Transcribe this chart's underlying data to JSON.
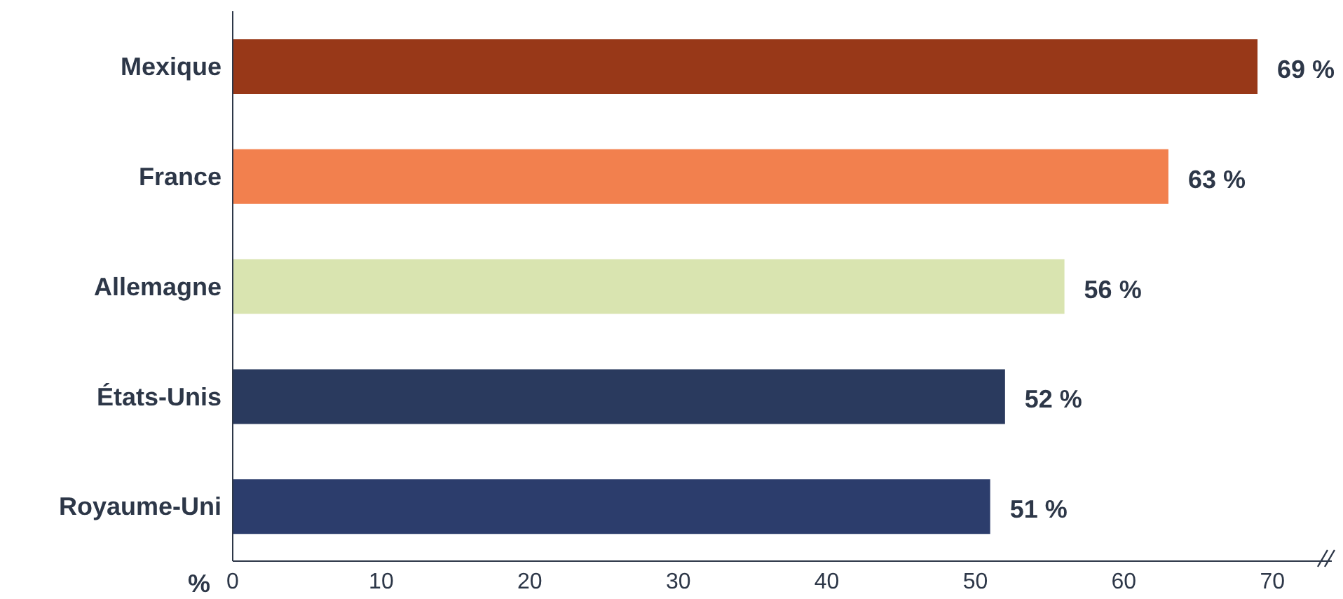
{
  "chart_data": {
    "type": "bar",
    "orientation": "horizontal",
    "xlabel": "%",
    "categories": [
      "Mexique",
      "France",
      "Allemagne",
      "États-Unis",
      "Royaume-Uni"
    ],
    "values": [
      69,
      63,
      56,
      52,
      51
    ],
    "colors": [
      "#983818",
      "#f2804e",
      "#d9e4b0",
      "#2a3a5e",
      "#2c3d6c"
    ],
    "value_labels": [
      "69 %",
      "63 %",
      "56 %",
      "52 %",
      "51 %"
    ],
    "xlim": [
      0,
      74
    ],
    "xticks": [
      0,
      10,
      20,
      30,
      40,
      50,
      60,
      70
    ],
    "grid": false
  }
}
